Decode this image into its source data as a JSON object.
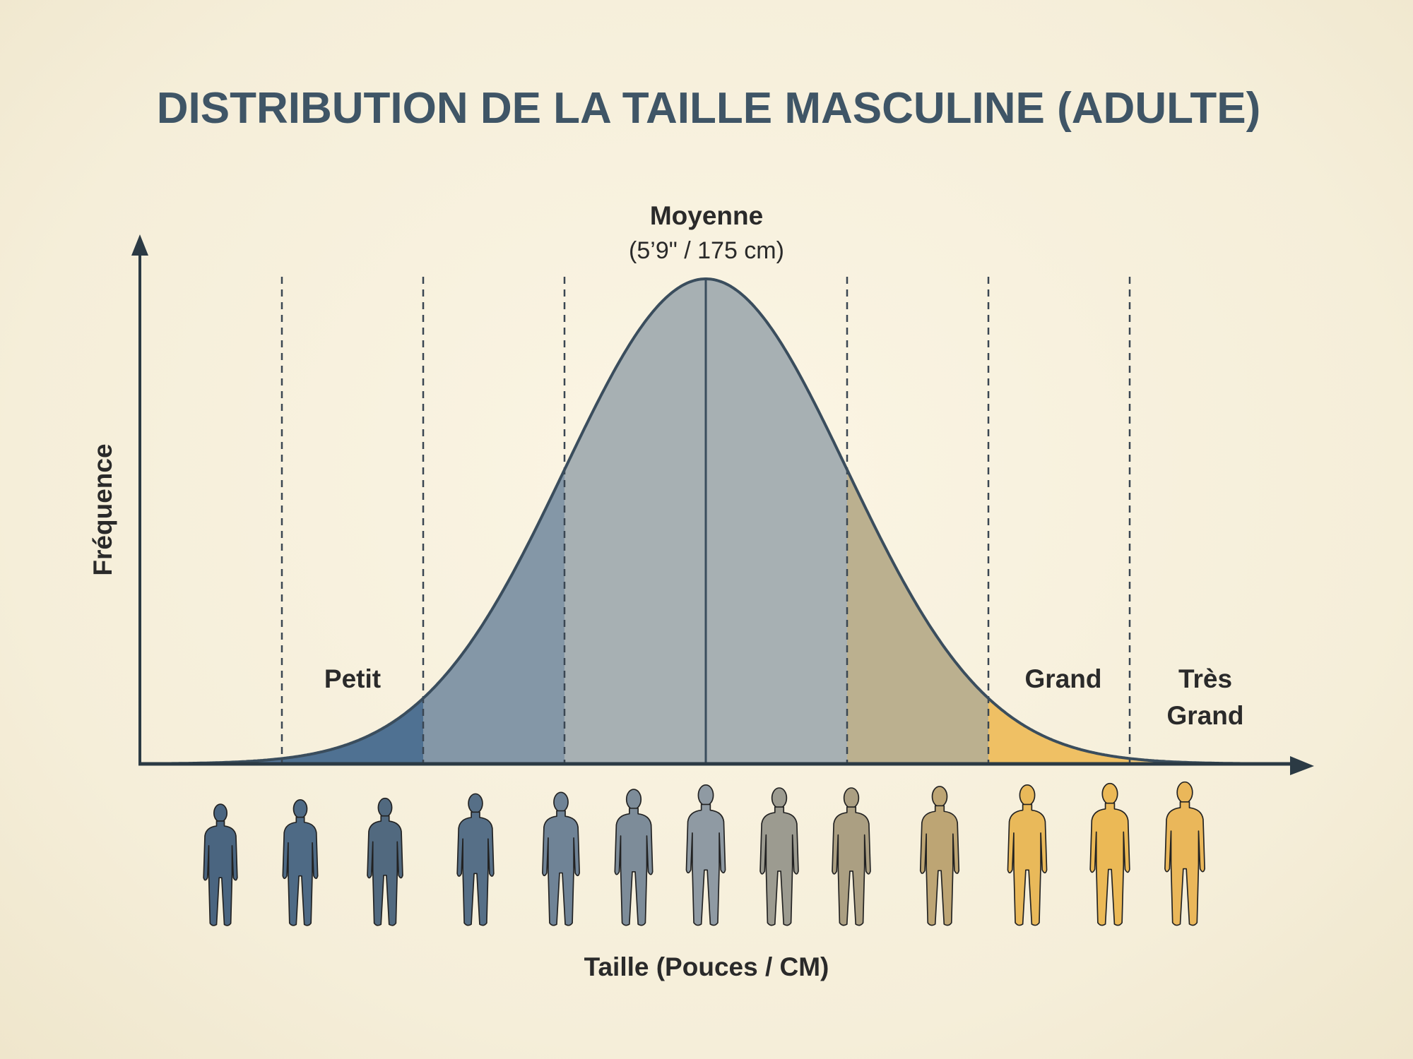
{
  "chart_data": {
    "type": "area",
    "distribution": "normal",
    "title": "DISTRIBUTION DE LA TAILLE MASCULINE (ADULTE)",
    "xlabel": "Taille (Pouces / CM)",
    "ylabel": "Fréquence",
    "mean_label": "Moyenne",
    "mean_value_label": "(5’9\" / 175 cm)",
    "mean_cm": 175,
    "band_boundaries_sigma": [
      -3,
      -2,
      -1,
      0,
      1,
      2,
      3
    ],
    "bands": [
      {
        "range_sigma": [
          -4,
          -3
        ],
        "color": "#56779a"
      },
      {
        "range_sigma": [
          -3,
          -2
        ],
        "color": "#4f7192",
        "label": "Petit"
      },
      {
        "range_sigma": [
          -2,
          -1
        ],
        "color": "#8497a7"
      },
      {
        "range_sigma": [
          -1,
          0
        ],
        "color": "#a7b0b3"
      },
      {
        "range_sigma": [
          0,
          1
        ],
        "color": "#a7b0b3"
      },
      {
        "range_sigma": [
          1,
          2
        ],
        "color": "#bbb08f"
      },
      {
        "range_sigma": [
          2,
          3
        ],
        "color": "#efc064",
        "label": "Grand"
      },
      {
        "range_sigma": [
          3,
          4
        ],
        "color": "#f2ca7a",
        "label_lines": [
          "Très",
          "Grand"
        ]
      }
    ],
    "category_labels": {
      "petit": "Petit",
      "grand": "Grand",
      "tres_grand_1": "Très",
      "tres_grand_2": "Grand"
    },
    "grid": false,
    "figures": {
      "count": 13,
      "colors": [
        "#4a6580",
        "#4e6a85",
        "#51697f",
        "#566f87",
        "#6f8396",
        "#7d8c99",
        "#8f9aa3",
        "#9c9b90",
        "#ab9f82",
        "#bda574",
        "#e9b95a",
        "#ebb956",
        "#eab75a"
      ],
      "relative_heights": [
        0.83,
        0.86,
        0.87,
        0.9,
        0.91,
        0.93,
        0.96,
        0.94,
        0.94,
        0.95,
        0.96,
        0.97,
        0.98
      ]
    },
    "colors": {
      "title": "#3f5566",
      "axis": "#2b3a44",
      "curve": "#3a4d5d",
      "text": "#2a2a2a"
    }
  }
}
